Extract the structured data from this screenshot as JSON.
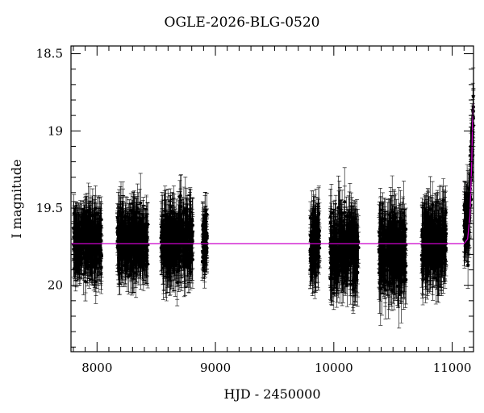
{
  "chart_data": {
    "type": "scatter",
    "title": "OGLE-2026-BLG-0520",
    "xlabel": "HJD - 2450000",
    "ylabel": "I magnitude",
    "xlim": [
      7780,
      11180
    ],
    "ylim": [
      20.43,
      18.45
    ],
    "y_inverted": true,
    "x_ticks": [
      8000,
      9000,
      10000,
      11000
    ],
    "y_ticks": [
      18.5,
      19,
      19.5,
      20
    ],
    "x_tick_labels": [
      "8000",
      "9000",
      "10000",
      "11000"
    ],
    "y_tick_labels": [
      "18.5",
      "19",
      "19.5",
      "20"
    ],
    "grid": false,
    "colors": {
      "points": "#000000",
      "model": "#cc00cc",
      "axes": "#000000"
    },
    "seasons": [
      {
        "x_start": 7800,
        "x_end": 8040,
        "mean_mag": 19.72,
        "mag_scatter": 0.18,
        "mag_error": 0.14
      },
      {
        "x_start": 8170,
        "x_end": 8430,
        "mean_mag": 19.72,
        "mag_scatter": 0.18,
        "mag_error": 0.14
      },
      {
        "x_start": 8540,
        "x_end": 8810,
        "mean_mag": 19.72,
        "mag_scatter": 0.19,
        "mag_error": 0.15
      },
      {
        "x_start": 8890,
        "x_end": 8930,
        "mean_mag": 19.72,
        "mag_scatter": 0.16,
        "mag_error": 0.12
      },
      {
        "x_start": 9800,
        "x_end": 9880,
        "mean_mag": 19.73,
        "mag_scatter": 0.19,
        "mag_error": 0.14
      },
      {
        "x_start": 9970,
        "x_end": 10210,
        "mean_mag": 19.76,
        "mag_scatter": 0.21,
        "mag_error": 0.16
      },
      {
        "x_start": 10380,
        "x_end": 10610,
        "mean_mag": 19.78,
        "mag_scatter": 0.22,
        "mag_error": 0.17
      },
      {
        "x_start": 10740,
        "x_end": 10950,
        "mean_mag": 19.74,
        "mag_scatter": 0.2,
        "mag_error": 0.16
      },
      {
        "x_start": 11100,
        "x_end": 11180,
        "mean_mag": 19.6,
        "mag_scatter": 0.18,
        "mag_error": 0.14
      }
    ],
    "model": {
      "baseline_mag": 19.73,
      "rise": [
        {
          "x": 11100,
          "y": 19.73
        },
        {
          "x": 11130,
          "y": 19.7
        },
        {
          "x": 11150,
          "y": 19.55
        },
        {
          "x": 11165,
          "y": 19.2
        },
        {
          "x": 11172,
          "y": 18.95
        },
        {
          "x": 11180,
          "y": 18.82
        }
      ]
    }
  }
}
